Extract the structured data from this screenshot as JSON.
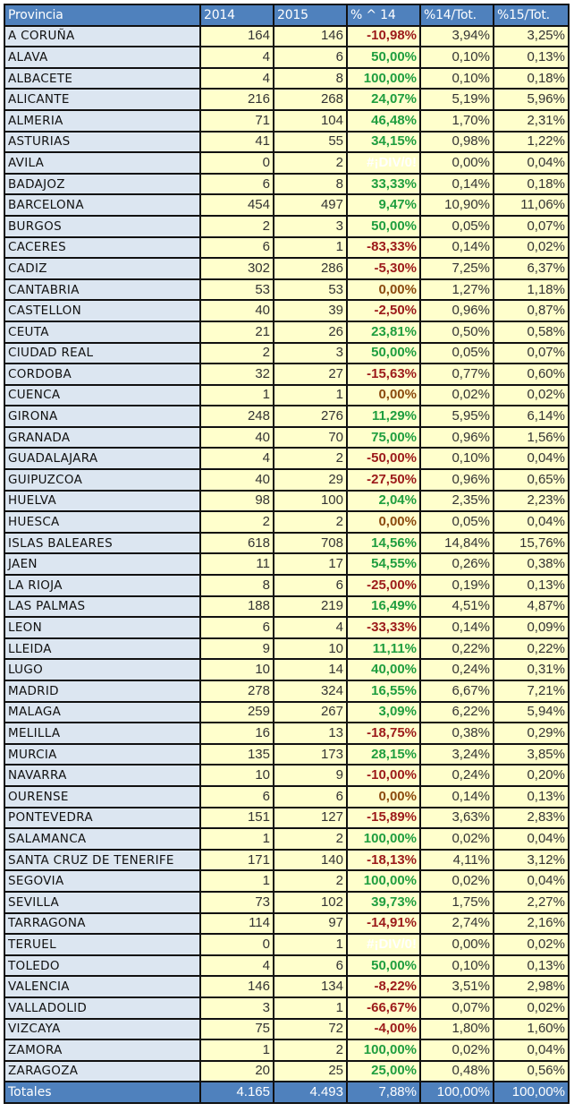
{
  "header": {
    "provincia": "Provincia",
    "y2014": "2014",
    "y2015": "2015",
    "pct_change": "% ^ 14",
    "pct14_tot": "%14/Tot.",
    "pct15_tot": "%15/Tot."
  },
  "colors": {
    "header_bg": "#4f81bd",
    "province_bg": "#dce6f1",
    "value_bg": "#ffffcc",
    "positive": "#1f9e3f",
    "negative": "#9c1a1a",
    "zero": "#8b4a0f"
  },
  "rows": [
    {
      "provincia": "A CORUÑA",
      "y2014": "164",
      "y2015": "146",
      "change": "-10,98%",
      "sign": "neg",
      "p14": "3,94%",
      "p15": "3,25%"
    },
    {
      "provincia": "ALAVA",
      "y2014": "4",
      "y2015": "6",
      "change": "50,00%",
      "sign": "pos",
      "p14": "0,10%",
      "p15": "0,13%"
    },
    {
      "provincia": "ALBACETE",
      "y2014": "4",
      "y2015": "8",
      "change": "100,00%",
      "sign": "pos",
      "p14": "0,10%",
      "p15": "0,18%"
    },
    {
      "provincia": "ALICANTE",
      "y2014": "216",
      "y2015": "268",
      "change": "24,07%",
      "sign": "pos",
      "p14": "5,19%",
      "p15": "5,96%"
    },
    {
      "provincia": "ALMERIA",
      "y2014": "71",
      "y2015": "104",
      "change": "46,48%",
      "sign": "pos",
      "p14": "1,70%",
      "p15": "2,31%"
    },
    {
      "provincia": "ASTURIAS",
      "y2014": "41",
      "y2015": "55",
      "change": "34,15%",
      "sign": "pos",
      "p14": "0,98%",
      "p15": "1,22%"
    },
    {
      "provincia": "AVILA",
      "y2014": "0",
      "y2015": "2",
      "change": "#¡DIV/0!",
      "sign": "err",
      "p14": "0,00%",
      "p15": "0,04%"
    },
    {
      "provincia": "BADAJOZ",
      "y2014": "6",
      "y2015": "8",
      "change": "33,33%",
      "sign": "pos",
      "p14": "0,14%",
      "p15": "0,18%"
    },
    {
      "provincia": "BARCELONA",
      "y2014": "454",
      "y2015": "497",
      "change": "9,47%",
      "sign": "pos",
      "p14": "10,90%",
      "p15": "11,06%"
    },
    {
      "provincia": "BURGOS",
      "y2014": "2",
      "y2015": "3",
      "change": "50,00%",
      "sign": "pos",
      "p14": "0,05%",
      "p15": "0,07%"
    },
    {
      "provincia": "CACERES",
      "y2014": "6",
      "y2015": "1",
      "change": "-83,33%",
      "sign": "neg",
      "p14": "0,14%",
      "p15": "0,02%"
    },
    {
      "provincia": "CADIZ",
      "y2014": "302",
      "y2015": "286",
      "change": "-5,30%",
      "sign": "neg",
      "p14": "7,25%",
      "p15": "6,37%"
    },
    {
      "provincia": "CANTABRIA",
      "y2014": "53",
      "y2015": "53",
      "change": "0,00%",
      "sign": "zero",
      "p14": "1,27%",
      "p15": "1,18%"
    },
    {
      "provincia": "CASTELLON",
      "y2014": "40",
      "y2015": "39",
      "change": "-2,50%",
      "sign": "neg",
      "p14": "0,96%",
      "p15": "0,87%"
    },
    {
      "provincia": "CEUTA",
      "y2014": "21",
      "y2015": "26",
      "change": "23,81%",
      "sign": "pos",
      "p14": "0,50%",
      "p15": "0,58%"
    },
    {
      "provincia": "CIUDAD REAL",
      "y2014": "2",
      "y2015": "3",
      "change": "50,00%",
      "sign": "pos",
      "p14": "0,05%",
      "p15": "0,07%"
    },
    {
      "provincia": "CORDOBA",
      "y2014": "32",
      "y2015": "27",
      "change": "-15,63%",
      "sign": "neg",
      "p14": "0,77%",
      "p15": "0,60%"
    },
    {
      "provincia": "CUENCA",
      "y2014": "1",
      "y2015": "1",
      "change": "0,00%",
      "sign": "zero",
      "p14": "0,02%",
      "p15": "0,02%"
    },
    {
      "provincia": "GIRONA",
      "y2014": "248",
      "y2015": "276",
      "change": "11,29%",
      "sign": "pos",
      "p14": "5,95%",
      "p15": "6,14%"
    },
    {
      "provincia": "GRANADA",
      "y2014": "40",
      "y2015": "70",
      "change": "75,00%",
      "sign": "pos",
      "p14": "0,96%",
      "p15": "1,56%"
    },
    {
      "provincia": "GUADALAJARA",
      "y2014": "4",
      "y2015": "2",
      "change": "-50,00%",
      "sign": "neg",
      "p14": "0,10%",
      "p15": "0,04%"
    },
    {
      "provincia": "GUIPUZCOA",
      "y2014": "40",
      "y2015": "29",
      "change": "-27,50%",
      "sign": "neg",
      "p14": "0,96%",
      "p15": "0,65%"
    },
    {
      "provincia": "HUELVA",
      "y2014": "98",
      "y2015": "100",
      "change": "2,04%",
      "sign": "pos",
      "p14": "2,35%",
      "p15": "2,23%"
    },
    {
      "provincia": "HUESCA",
      "y2014": "2",
      "y2015": "2",
      "change": "0,00%",
      "sign": "zero",
      "p14": "0,05%",
      "p15": "0,04%"
    },
    {
      "provincia": "ISLAS BALEARES",
      "y2014": "618",
      "y2015": "708",
      "change": "14,56%",
      "sign": "pos",
      "p14": "14,84%",
      "p15": "15,76%"
    },
    {
      "provincia": "JAEN",
      "y2014": "11",
      "y2015": "17",
      "change": "54,55%",
      "sign": "pos",
      "p14": "0,26%",
      "p15": "0,38%"
    },
    {
      "provincia": "LA RIOJA",
      "y2014": "8",
      "y2015": "6",
      "change": "-25,00%",
      "sign": "neg",
      "p14": "0,19%",
      "p15": "0,13%"
    },
    {
      "provincia": "LAS PALMAS",
      "y2014": "188",
      "y2015": "219",
      "change": "16,49%",
      "sign": "pos",
      "p14": "4,51%",
      "p15": "4,87%"
    },
    {
      "provincia": "LEON",
      "y2014": "6",
      "y2015": "4",
      "change": "-33,33%",
      "sign": "neg",
      "p14": "0,14%",
      "p15": "0,09%"
    },
    {
      "provincia": "LLEIDA",
      "y2014": "9",
      "y2015": "10",
      "change": "11,11%",
      "sign": "pos",
      "p14": "0,22%",
      "p15": "0,22%"
    },
    {
      "provincia": "LUGO",
      "y2014": "10",
      "y2015": "14",
      "change": "40,00%",
      "sign": "pos",
      "p14": "0,24%",
      "p15": "0,31%"
    },
    {
      "provincia": "MADRID",
      "y2014": "278",
      "y2015": "324",
      "change": "16,55%",
      "sign": "pos",
      "p14": "6,67%",
      "p15": "7,21%"
    },
    {
      "provincia": "MALAGA",
      "y2014": "259",
      "y2015": "267",
      "change": "3,09%",
      "sign": "pos",
      "p14": "6,22%",
      "p15": "5,94%"
    },
    {
      "provincia": "MELILLA",
      "y2014": "16",
      "y2015": "13",
      "change": "-18,75%",
      "sign": "neg",
      "p14": "0,38%",
      "p15": "0,29%"
    },
    {
      "provincia": "MURCIA",
      "y2014": "135",
      "y2015": "173",
      "change": "28,15%",
      "sign": "pos",
      "p14": "3,24%",
      "p15": "3,85%"
    },
    {
      "provincia": "NAVARRA",
      "y2014": "10",
      "y2015": "9",
      "change": "-10,00%",
      "sign": "neg",
      "p14": "0,24%",
      "p15": "0,20%"
    },
    {
      "provincia": "OURENSE",
      "y2014": "6",
      "y2015": "6",
      "change": "0,00%",
      "sign": "zero",
      "p14": "0,14%",
      "p15": "0,13%"
    },
    {
      "provincia": "PONTEVEDRA",
      "y2014": "151",
      "y2015": "127",
      "change": "-15,89%",
      "sign": "neg",
      "p14": "3,63%",
      "p15": "2,83%"
    },
    {
      "provincia": "SALAMANCA",
      "y2014": "1",
      "y2015": "2",
      "change": "100,00%",
      "sign": "pos",
      "p14": "0,02%",
      "p15": "0,04%"
    },
    {
      "provincia": "SANTA CRUZ DE TENERIFE",
      "y2014": "171",
      "y2015": "140",
      "change": "-18,13%",
      "sign": "neg",
      "p14": "4,11%",
      "p15": "3,12%"
    },
    {
      "provincia": "SEGOVIA",
      "y2014": "1",
      "y2015": "2",
      "change": "100,00%",
      "sign": "pos",
      "p14": "0,02%",
      "p15": "0,04%"
    },
    {
      "provincia": "SEVILLA",
      "y2014": "73",
      "y2015": "102",
      "change": "39,73%",
      "sign": "pos",
      "p14": "1,75%",
      "p15": "2,27%"
    },
    {
      "provincia": "TARRAGONA",
      "y2014": "114",
      "y2015": "97",
      "change": "-14,91%",
      "sign": "neg",
      "p14": "2,74%",
      "p15": "2,16%"
    },
    {
      "provincia": "TERUEL",
      "y2014": "0",
      "y2015": "1",
      "change": "#¡DIV/0!",
      "sign": "err",
      "p14": "0,00%",
      "p15": "0,02%"
    },
    {
      "provincia": "TOLEDO",
      "y2014": "4",
      "y2015": "6",
      "change": "50,00%",
      "sign": "pos",
      "p14": "0,10%",
      "p15": "0,13%"
    },
    {
      "provincia": "VALENCIA",
      "y2014": "146",
      "y2015": "134",
      "change": "-8,22%",
      "sign": "neg",
      "p14": "3,51%",
      "p15": "2,98%"
    },
    {
      "provincia": "VALLADOLID",
      "y2014": "3",
      "y2015": "1",
      "change": "-66,67%",
      "sign": "neg",
      "p14": "0,07%",
      "p15": "0,02%"
    },
    {
      "provincia": "VIZCAYA",
      "y2014": "75",
      "y2015": "72",
      "change": "-4,00%",
      "sign": "neg",
      "p14": "1,80%",
      "p15": "1,60%"
    },
    {
      "provincia": "ZAMORA",
      "y2014": "1",
      "y2015": "2",
      "change": "100,00%",
      "sign": "pos",
      "p14": "0,02%",
      "p15": "0,04%"
    },
    {
      "provincia": "ZARAGOZA",
      "y2014": "20",
      "y2015": "25",
      "change": "25,00%",
      "sign": "pos",
      "p14": "0,48%",
      "p15": "0,56%"
    }
  ],
  "totals": {
    "label": "Totales",
    "y2014": "4.165",
    "y2015": "4.493",
    "change": "7,88%",
    "p14": "100,00%",
    "p15": "100,00%"
  }
}
